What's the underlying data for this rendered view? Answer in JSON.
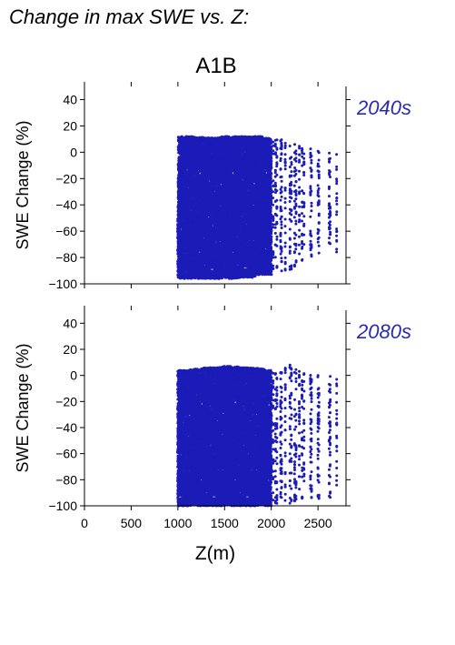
{
  "page": {
    "title": "Change in max SWE vs. Z:",
    "scenario": "A1B"
  },
  "colors": {
    "points": "#1c1cb8",
    "period_label": "#2a2ab0",
    "axis": "#000000"
  },
  "chart_data": [
    {
      "type": "scatter",
      "period_label": "2040s",
      "xlabel": "",
      "ylabel": "SWE Change (%)",
      "xlim": [
        0,
        2800
      ],
      "ylim": [
        -100,
        50
      ],
      "yticks": [
        40,
        20,
        0,
        -20,
        -40,
        -60,
        -80,
        -100
      ],
      "xticks": [
        0,
        500,
        1000,
        1500,
        2000,
        2500
      ],
      "show_x_tick_labels": false,
      "grid": false,
      "x_range": [
        1000,
        2700
      ],
      "y_range": [
        -100,
        12
      ],
      "series": [
        {
          "x": [
            1000,
            1000,
            1100,
            1200,
            1300,
            1400,
            1500,
            1600,
            1700,
            1800,
            1900,
            2000,
            2050,
            2100,
            2200,
            2250,
            2300,
            2350,
            2400,
            2500,
            2600,
            2700
          ],
          "y_max": [
            -40,
            12,
            12,
            12,
            11,
            11,
            12,
            12,
            12,
            12,
            12,
            10,
            10,
            10,
            8,
            8,
            6,
            4,
            2,
            5,
            5,
            8
          ],
          "y_min": [
            -100,
            -96,
            -96,
            -96,
            -96,
            -96,
            -96,
            -96,
            -95,
            -95,
            -93,
            -93,
            -88,
            -92,
            -90,
            -88,
            -88,
            -80,
            -80,
            -78,
            -70,
            -80
          ]
        }
      ]
    },
    {
      "type": "scatter",
      "period_label": "2080s",
      "xlabel": "Z(m)",
      "ylabel": "SWE Change (%)",
      "xlim": [
        0,
        2800
      ],
      "ylim": [
        -100,
        50
      ],
      "yticks": [
        40,
        20,
        0,
        -20,
        -40,
        -60,
        -80,
        -100
      ],
      "xticks": [
        0,
        500,
        1000,
        1500,
        2000,
        2500
      ],
      "show_x_tick_labels": true,
      "grid": false,
      "x_range": [
        1000,
        2700
      ],
      "y_range": [
        -100,
        8
      ],
      "series": [
        {
          "x": [
            1000,
            1100,
            1200,
            1300,
            1400,
            1500,
            1600,
            1700,
            1800,
            1900,
            2000,
            2050,
            2100,
            2200,
            2250,
            2300,
            2350,
            2400,
            2500,
            2600,
            2700
          ],
          "y_max": [
            4,
            4,
            5,
            6,
            6,
            7,
            7,
            6,
            6,
            5,
            4,
            4,
            4,
            8,
            8,
            4,
            2,
            0,
            2,
            2,
            0
          ],
          "y_min": [
            -100,
            -100,
            -100,
            -100,
            -100,
            -100,
            -100,
            -100,
            -100,
            -100,
            -100,
            -98,
            -100,
            -98,
            -98,
            -96,
            -95,
            -95,
            -95,
            -95,
            -95
          ]
        }
      ]
    }
  ]
}
